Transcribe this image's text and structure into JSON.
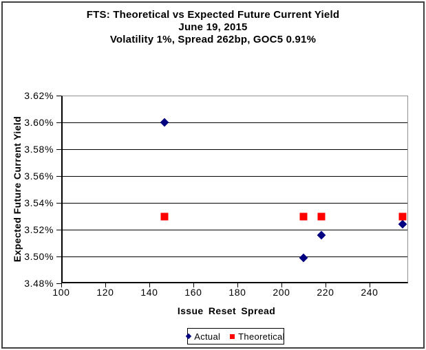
{
  "title": {
    "line1": "FTS: Theoretical vs Expected Future Current Yield",
    "line2": "June 19, 2015",
    "line3": "Volatility 1%, Spread 262bp, GOC5 0.91%"
  },
  "legend": {
    "items": [
      {
        "label": "Actual",
        "icon": "diamond-icon",
        "color": "#000080"
      },
      {
        "label": "Theoretical",
        "icon": "square-icon",
        "color": "#ff0000"
      }
    ]
  },
  "chart_data": {
    "type": "scatter",
    "title": "FTS: Theoretical vs Expected Future Current Yield",
    "subtitle": "June 19, 2015",
    "subtitle2": "Volatility 1%, Spread 262bp, GOC5 0.91%",
    "xlabel": "Issue Reset Spread",
    "ylabel": "Expected Future Current Yield",
    "xlim": [
      100,
      257.5
    ],
    "ylim": [
      3.48,
      3.62
    ],
    "grid": "horizontal-only",
    "legend_position": "bottom-center",
    "xticks": [
      {
        "value": 100,
        "label": "100"
      },
      {
        "value": 120,
        "label": "120"
      },
      {
        "value": 140,
        "label": "140"
      },
      {
        "value": 160,
        "label": "160"
      },
      {
        "value": 180,
        "label": "180"
      },
      {
        "value": 200,
        "label": "200"
      },
      {
        "value": 220,
        "label": "220"
      },
      {
        "value": 240,
        "label": "240"
      }
    ],
    "yticks": [
      {
        "value": 3.48,
        "label": "3.48%"
      },
      {
        "value": 3.5,
        "label": "3.50%"
      },
      {
        "value": 3.52,
        "label": "3.52%"
      },
      {
        "value": 3.54,
        "label": "3.54%"
      },
      {
        "value": 3.56,
        "label": "3.56%"
      },
      {
        "value": 3.58,
        "label": "3.58%"
      },
      {
        "value": 3.6,
        "label": "3.60%"
      },
      {
        "value": 3.62,
        "label": "3.62%"
      }
    ],
    "series": [
      {
        "name": "Actual",
        "marker": "diamond",
        "color": "#000080",
        "points": [
          {
            "x": 147,
            "y": 3.6
          },
          {
            "x": 210,
            "y": 3.499
          },
          {
            "x": 218,
            "y": 3.516
          },
          {
            "x": 255,
            "y": 3.524
          }
        ]
      },
      {
        "name": "Theoretical",
        "marker": "square",
        "color": "#ff0000",
        "points": [
          {
            "x": 147,
            "y": 3.53
          },
          {
            "x": 210,
            "y": 3.53
          },
          {
            "x": 218,
            "y": 3.53
          },
          {
            "x": 255,
            "y": 3.53
          }
        ]
      }
    ]
  }
}
